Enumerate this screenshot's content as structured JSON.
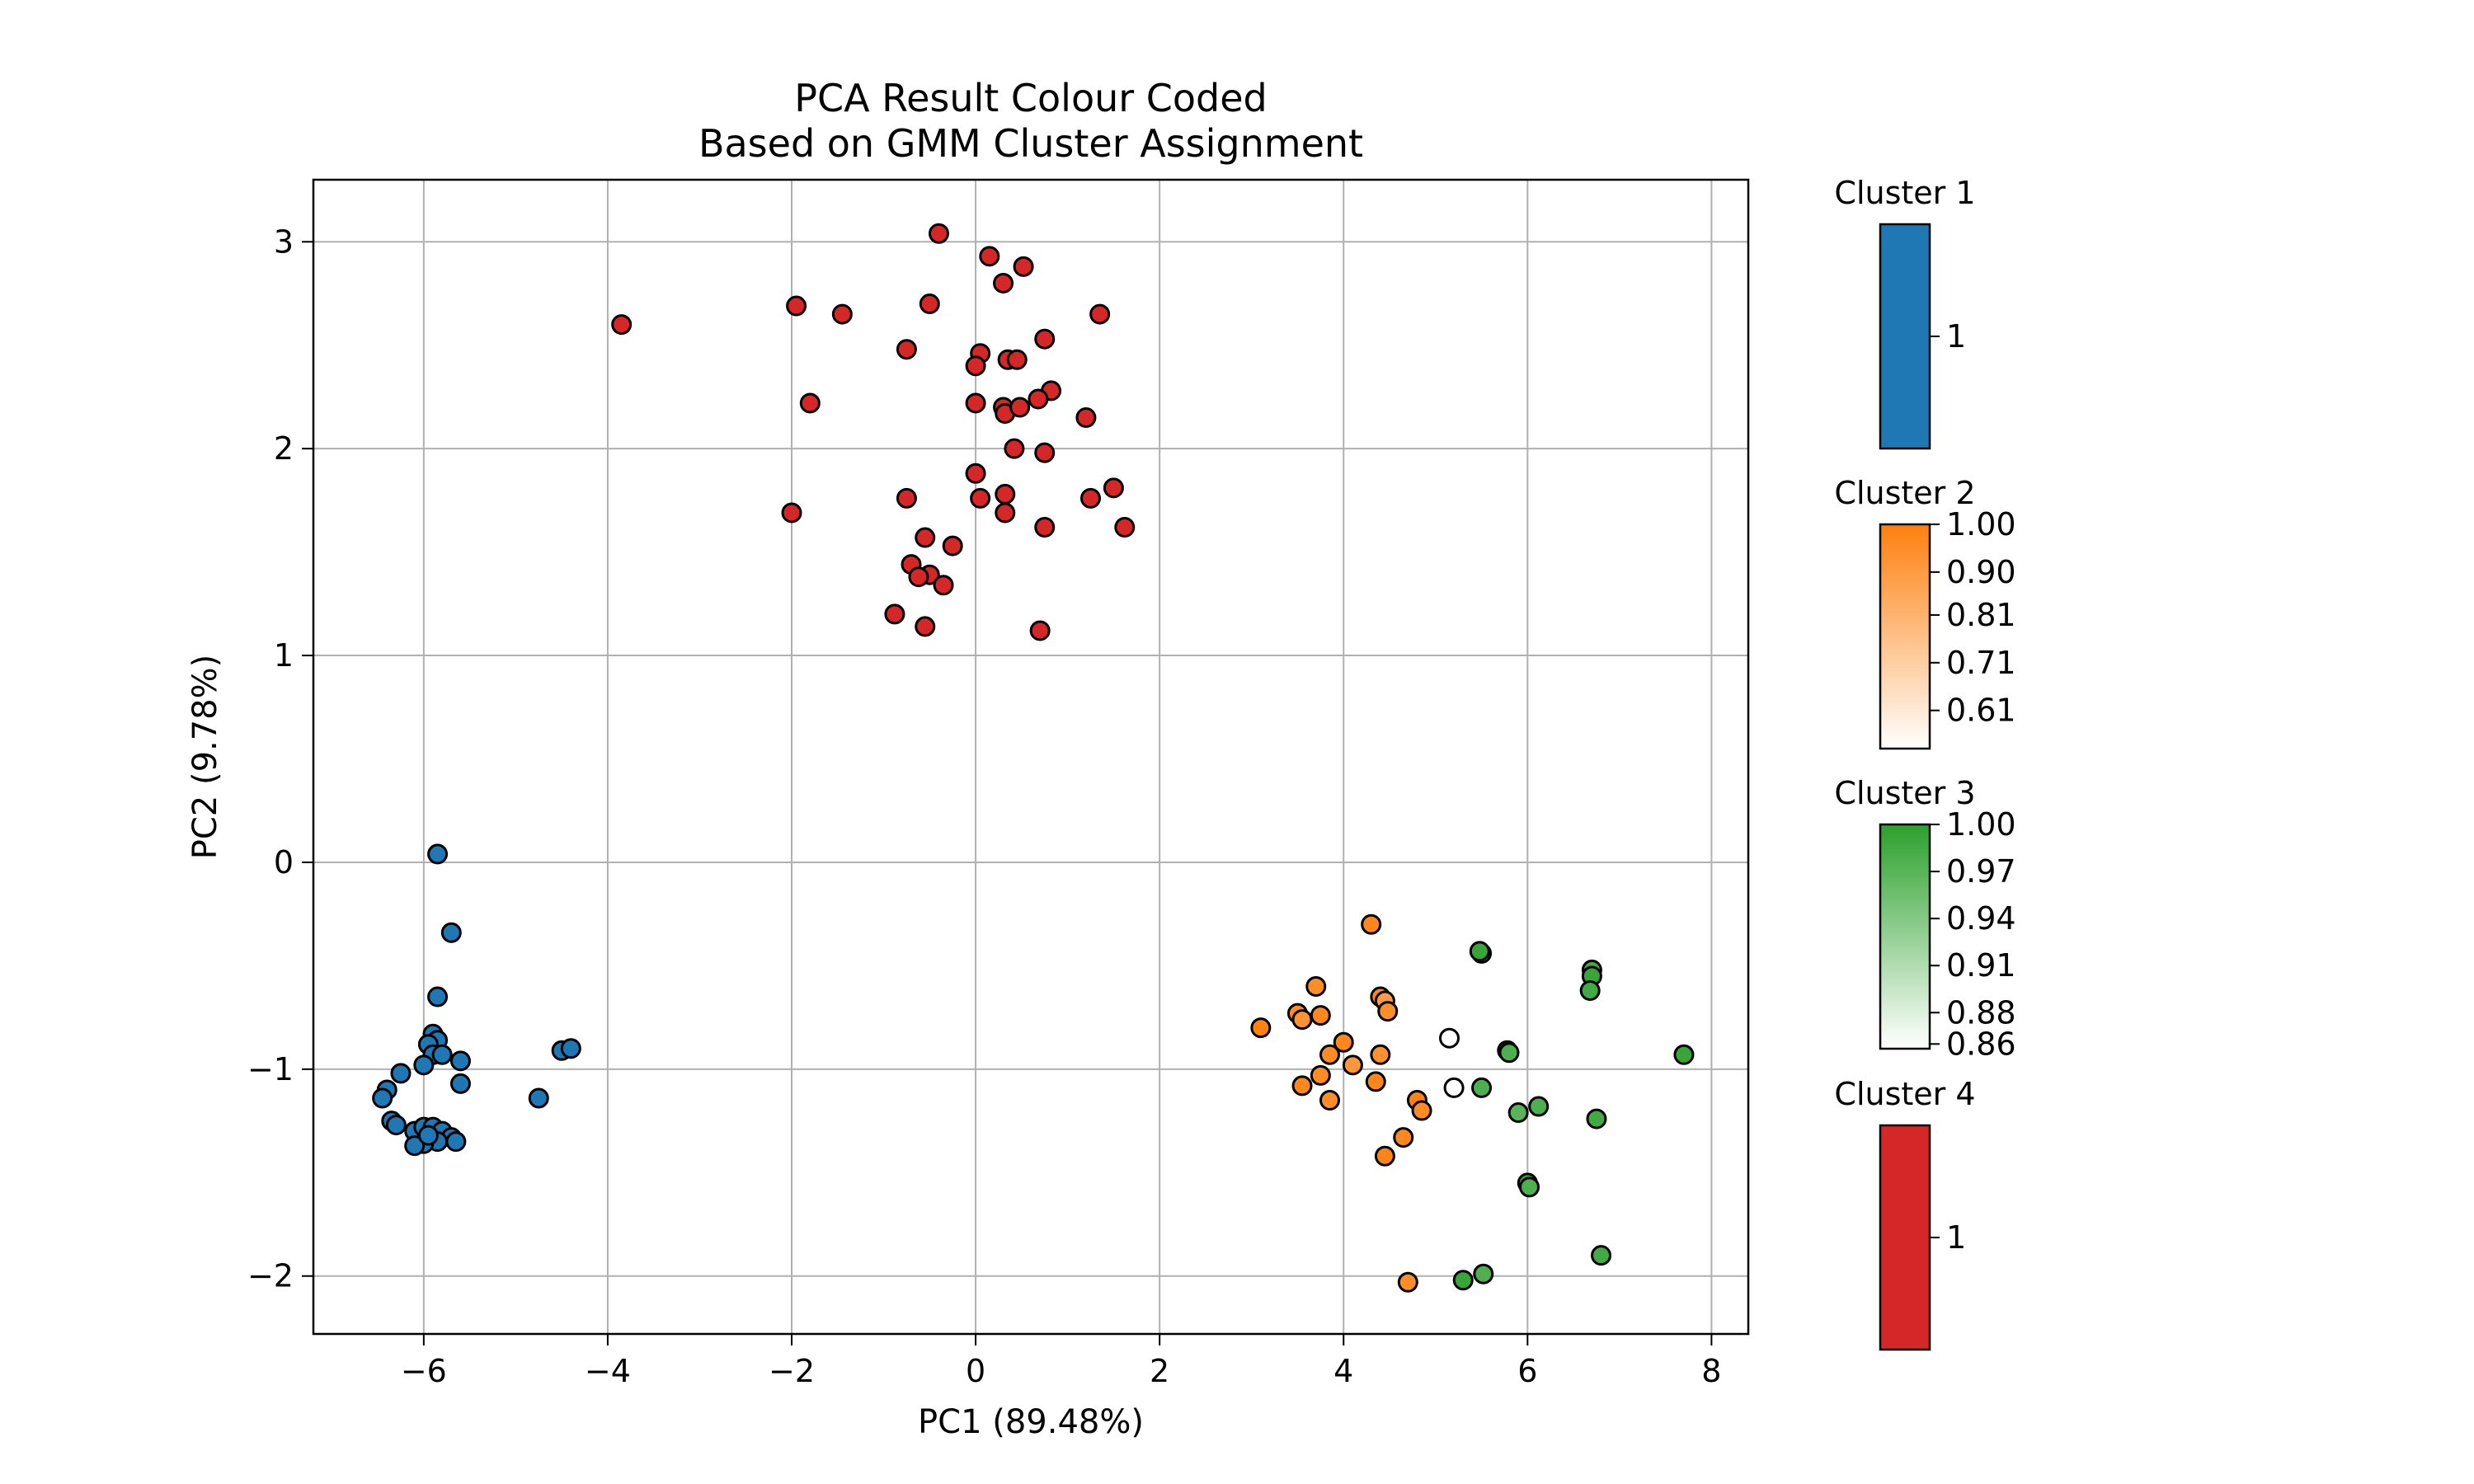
{
  "chart_data": {
    "type": "scatter",
    "title": "PCA Result Colour Coded\nBased on GMM Cluster Assignment",
    "xlabel": "PC1 (89.48%)",
    "ylabel": "PC2 (9.78%)",
    "xlim": [
      -7.2,
      8.4
    ],
    "ylim": [
      -2.28,
      3.3
    ],
    "xticks": [
      -6,
      -4,
      -2,
      0,
      2,
      4,
      6,
      8
    ],
    "xtick_labels": [
      "−6",
      "−4",
      "−2",
      "0",
      "2",
      "4",
      "6",
      "8"
    ],
    "yticks": [
      -2,
      -1,
      0,
      1,
      2,
      3
    ],
    "ytick_labels": [
      "−2",
      "−1",
      "0",
      "1",
      "2",
      "3"
    ],
    "grid": true,
    "series": [
      {
        "name": "Cluster 1",
        "color": "#1f77b4",
        "points": [
          [
            -5.85,
            0.04
          ],
          [
            -5.7,
            -0.34
          ],
          [
            -5.85,
            -0.65
          ],
          [
            -5.9,
            -0.83
          ],
          [
            -5.85,
            -0.86
          ],
          [
            -5.95,
            -0.88
          ],
          [
            -5.9,
            -0.93
          ],
          [
            -5.8,
            -0.93
          ],
          [
            -6.0,
            -0.98
          ],
          [
            -5.6,
            -0.96
          ],
          [
            -6.25,
            -1.02
          ],
          [
            -5.6,
            -1.07
          ],
          [
            -6.4,
            -1.1
          ],
          [
            -6.45,
            -1.14
          ],
          [
            -4.5,
            -0.91
          ],
          [
            -4.4,
            -0.9
          ],
          [
            -4.75,
            -1.14
          ],
          [
            -6.35,
            -1.25
          ],
          [
            -6.3,
            -1.27
          ],
          [
            -6.1,
            -1.3
          ],
          [
            -6.0,
            -1.28
          ],
          [
            -5.9,
            -1.28
          ],
          [
            -5.8,
            -1.3
          ],
          [
            -5.7,
            -1.33
          ],
          [
            -5.65,
            -1.35
          ],
          [
            -5.85,
            -1.35
          ],
          [
            -6.0,
            -1.36
          ],
          [
            -6.1,
            -1.37
          ],
          [
            -5.95,
            -1.32
          ]
        ]
      },
      {
        "name": "Cluster 2",
        "color": "#ff7f0e",
        "colorbar_ticks": [
          "1.00",
          "0.90",
          "0.81",
          "0.71",
          "0.61"
        ],
        "points": [
          [
            4.3,
            -0.3,
            0.97
          ],
          [
            3.7,
            -0.6,
            0.95
          ],
          [
            4.4,
            -0.65,
            0.98
          ],
          [
            4.45,
            -0.67,
            0.9
          ],
          [
            3.5,
            -0.73,
            0.96
          ],
          [
            3.55,
            -0.76,
            0.93
          ],
          [
            3.75,
            -0.74,
            0.97
          ],
          [
            4.48,
            -0.72,
            0.95
          ],
          [
            3.1,
            -0.8,
            0.99
          ],
          [
            4.0,
            -0.87,
            0.97
          ],
          [
            3.85,
            -0.93,
            0.96
          ],
          [
            4.4,
            -0.93,
            0.94
          ],
          [
            4.1,
            -0.98,
            0.92
          ],
          [
            3.75,
            -1.03,
            0.96
          ],
          [
            4.35,
            -1.06,
            0.98
          ],
          [
            3.55,
            -1.08,
            0.97
          ],
          [
            3.85,
            -1.15,
            0.95
          ],
          [
            4.8,
            -1.15,
            0.99
          ],
          [
            4.85,
            -1.2,
            0.96
          ],
          [
            4.65,
            -1.33,
            0.97
          ],
          [
            4.45,
            -1.42,
            0.98
          ],
          [
            4.7,
            -2.03,
            0.95
          ],
          [
            5.15,
            -0.85,
            0.55
          ],
          [
            5.2,
            -1.09,
            0.55
          ]
        ]
      },
      {
        "name": "Cluster 3",
        "color": "#2ca02c",
        "colorbar_ticks": [
          "1.00",
          "0.97",
          "0.94",
          "0.91",
          "0.88",
          "0.86"
        ],
        "points": [
          [
            5.5,
            -0.44,
            0.98
          ],
          [
            5.48,
            -0.43,
            0.99
          ],
          [
            6.7,
            -0.52,
            0.98
          ],
          [
            6.7,
            -0.55,
            0.99
          ],
          [
            6.68,
            -0.62,
            0.98
          ],
          [
            5.78,
            -0.91,
            0.99
          ],
          [
            5.8,
            -0.92,
            0.97
          ],
          [
            7.7,
            -0.93,
            0.99
          ],
          [
            5.5,
            -1.09,
            0.97
          ],
          [
            5.9,
            -1.21,
            0.96
          ],
          [
            6.12,
            -1.18,
            0.97
          ],
          [
            6.75,
            -1.24,
            0.98
          ],
          [
            6.0,
            -1.55,
            0.99
          ],
          [
            6.02,
            -1.57,
            0.97
          ],
          [
            6.8,
            -1.9,
            0.98
          ],
          [
            5.52,
            -1.99,
            0.97
          ],
          [
            5.3,
            -2.02,
            0.99
          ]
        ]
      },
      {
        "name": "Cluster 4",
        "color": "#d62728",
        "points": [
          [
            -0.4,
            3.04
          ],
          [
            0.15,
            2.93
          ],
          [
            0.52,
            2.88
          ],
          [
            0.3,
            2.8
          ],
          [
            -0.5,
            2.7
          ],
          [
            -1.95,
            2.69
          ],
          [
            -1.45,
            2.65
          ],
          [
            1.35,
            2.65
          ],
          [
            -3.85,
            2.6
          ],
          [
            0.75,
            2.53
          ],
          [
            -0.75,
            2.48
          ],
          [
            0.05,
            2.46
          ],
          [
            0.35,
            2.43
          ],
          [
            0.45,
            2.43
          ],
          [
            0.0,
            2.4
          ],
          [
            0.82,
            2.28
          ],
          [
            0.68,
            2.24
          ],
          [
            -1.8,
            2.22
          ],
          [
            0.0,
            2.22
          ],
          [
            0.3,
            2.2
          ],
          [
            0.32,
            2.17
          ],
          [
            0.48,
            2.2
          ],
          [
            1.2,
            2.15
          ],
          [
            0.42,
            2.0
          ],
          [
            0.75,
            1.98
          ],
          [
            0.0,
            1.88
          ],
          [
            1.5,
            1.81
          ],
          [
            -0.75,
            1.76
          ],
          [
            0.05,
            1.76
          ],
          [
            1.25,
            1.76
          ],
          [
            0.32,
            1.78
          ],
          [
            -2.0,
            1.69
          ],
          [
            0.32,
            1.69
          ],
          [
            1.62,
            1.62
          ],
          [
            0.75,
            1.62
          ],
          [
            -0.55,
            1.57
          ],
          [
            -0.25,
            1.53
          ],
          [
            -0.7,
            1.44
          ],
          [
            -0.5,
            1.39
          ],
          [
            -0.62,
            1.38
          ],
          [
            -0.35,
            1.34
          ],
          [
            -0.88,
            1.2
          ],
          [
            -0.55,
            1.14
          ],
          [
            0.7,
            1.12
          ]
        ]
      }
    ],
    "legend": "colorbars-right"
  }
}
